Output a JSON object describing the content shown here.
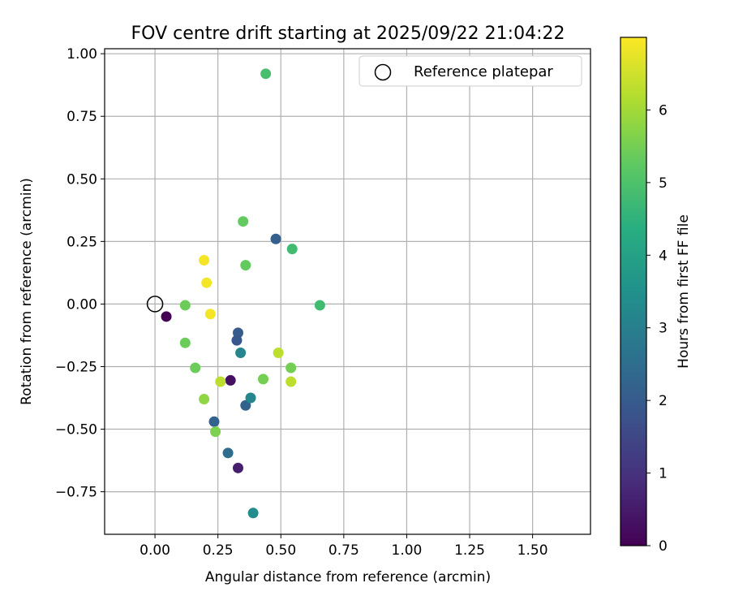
{
  "chart_data": {
    "type": "scatter",
    "title": "FOV centre drift starting at 2025/09/22 21:04:22",
    "xlabel": "Angular distance from reference (arcmin)",
    "ylabel": "Rotation from reference (arcmin)",
    "xlim": [
      -0.2,
      1.73
    ],
    "ylim": [
      -0.92,
      1.02
    ],
    "xticks": [
      0.0,
      0.25,
      0.5,
      0.75,
      1.0,
      1.25,
      1.5
    ],
    "xtick_labels": [
      "0.00",
      "0.25",
      "0.50",
      "0.75",
      "1.00",
      "1.25",
      "1.50"
    ],
    "yticks": [
      -0.75,
      -0.5,
      -0.25,
      0.0,
      0.25,
      0.5,
      0.75,
      1.0
    ],
    "ytick_labels": [
      "−0.75",
      "−0.50",
      "−0.25",
      "0.00",
      "0.25",
      "0.50",
      "0.75",
      "1.00"
    ],
    "grid": true,
    "legend": {
      "position": "top-right",
      "entries": [
        {
          "label": "Reference platepar",
          "marker": "open-circle"
        }
      ]
    },
    "reference_point": {
      "x": 0.0,
      "y": 0.0
    },
    "colorbar": {
      "label": "Hours from first FF file",
      "min": 0,
      "max": 7.0,
      "ticks": [
        0,
        1,
        2,
        3,
        4,
        5,
        6
      ],
      "tick_labels": [
        "0",
        "1",
        "2",
        "3",
        "4",
        "5",
        "6"
      ],
      "colormap": "viridis"
    },
    "points": [
      {
        "x": 0.045,
        "y": -0.05,
        "hours": 0.0
      },
      {
        "x": 0.3,
        "y": -0.305,
        "hours": 0.3
      },
      {
        "x": 0.33,
        "y": -0.655,
        "hours": 0.6
      },
      {
        "x": 0.48,
        "y": 0.26,
        "hours": 2.1
      },
      {
        "x": 0.33,
        "y": -0.115,
        "hours": 2.0
      },
      {
        "x": 0.325,
        "y": -0.145,
        "hours": 1.9
      },
      {
        "x": 0.36,
        "y": -0.405,
        "hours": 2.2
      },
      {
        "x": 0.235,
        "y": -0.47,
        "hours": 2.2
      },
      {
        "x": 0.29,
        "y": -0.595,
        "hours": 2.5
      },
      {
        "x": 0.34,
        "y": -0.195,
        "hours": 3.2
      },
      {
        "x": 0.38,
        "y": -0.375,
        "hours": 3.2
      },
      {
        "x": 0.39,
        "y": -0.835,
        "hours": 3.4
      },
      {
        "x": 0.655,
        "y": -0.005,
        "hours": 4.8
      },
      {
        "x": 0.545,
        "y": 0.22,
        "hours": 4.8
      },
      {
        "x": 0.44,
        "y": 0.92,
        "hours": 4.9
      },
      {
        "x": 0.35,
        "y": 0.33,
        "hours": 5.3
      },
      {
        "x": 0.36,
        "y": 0.155,
        "hours": 5.3
      },
      {
        "x": 0.12,
        "y": -0.005,
        "hours": 5.4
      },
      {
        "x": 0.12,
        "y": -0.155,
        "hours": 5.4
      },
      {
        "x": 0.16,
        "y": -0.255,
        "hours": 5.4
      },
      {
        "x": 0.54,
        "y": -0.255,
        "hours": 5.5
      },
      {
        "x": 0.43,
        "y": -0.3,
        "hours": 5.5
      },
      {
        "x": 0.24,
        "y": -0.51,
        "hours": 5.6
      },
      {
        "x": 0.195,
        "y": -0.38,
        "hours": 5.8
      },
      {
        "x": 0.26,
        "y": -0.31,
        "hours": 6.3
      },
      {
        "x": 0.54,
        "y": -0.31,
        "hours": 6.3
      },
      {
        "x": 0.49,
        "y": -0.195,
        "hours": 6.3
      },
      {
        "x": 0.195,
        "y": 0.175,
        "hours": 6.9
      },
      {
        "x": 0.205,
        "y": 0.085,
        "hours": 6.9
      },
      {
        "x": 0.22,
        "y": -0.04,
        "hours": 6.9
      }
    ]
  }
}
